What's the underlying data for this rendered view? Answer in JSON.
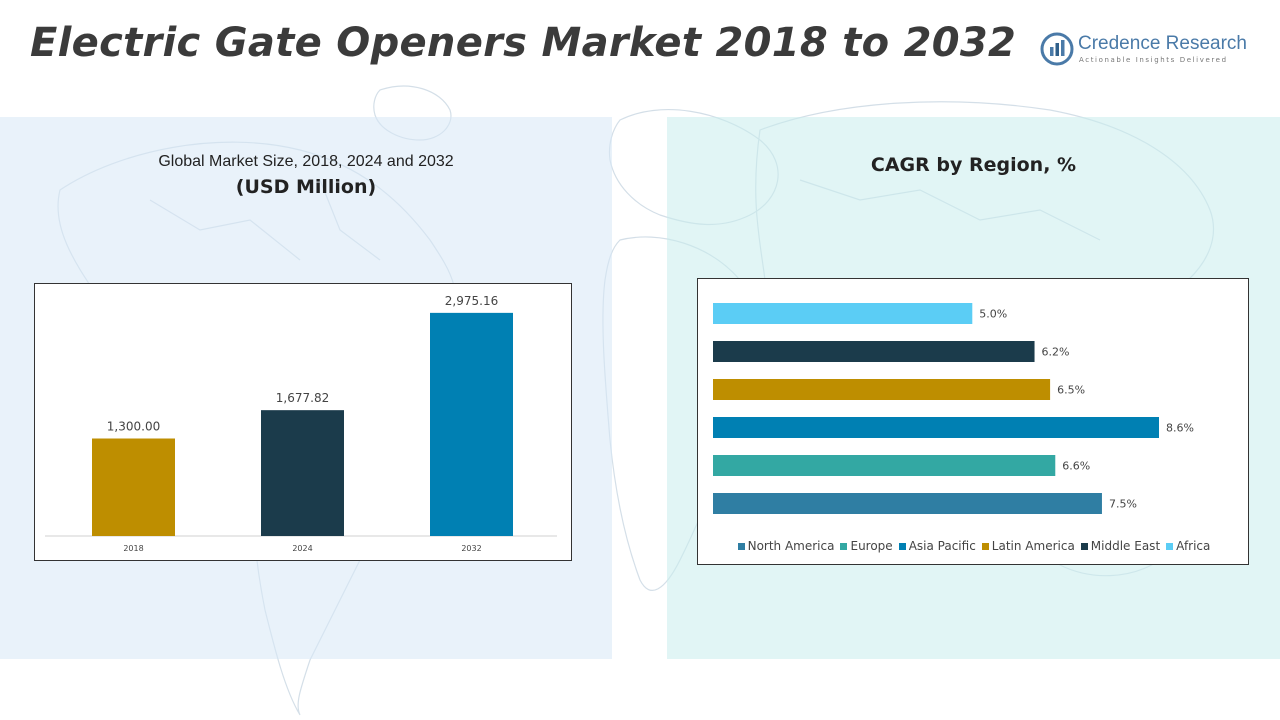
{
  "header": {
    "title": "Electric Gate Openers Market 2018 to 2032",
    "logo_name": "Credence Research",
    "logo_tagline": "Actionable Insights Delivered",
    "logo_color": "#4a7aa8"
  },
  "left_panel": {
    "subtitle": "Global Market Size, 2018, 2024 and 2032",
    "unit": "(USD Million)"
  },
  "right_panel": {
    "title": "CAGR by Region, %"
  },
  "chart_data": [
    {
      "type": "bar",
      "title": "Global Market Size, 2018, 2024 and 2032",
      "ylabel": "",
      "xlabel": "",
      "categories": [
        "2018",
        "2024",
        "2032"
      ],
      "values": [
        1300.0,
        1677.82,
        2975.16
      ],
      "value_labels": [
        "1,300.00",
        "1,677.82",
        "2,975.16"
      ],
      "colors": [
        "#be8e00",
        "#1b3b4b",
        "#0080b3"
      ],
      "ylim": [
        0,
        3200
      ],
      "grid": false
    },
    {
      "type": "bar",
      "orientation": "horizontal",
      "title": "CAGR by Region, %",
      "categories": [
        "North America",
        "Europe",
        "Asia Pacific",
        "Latin America",
        "Middle East",
        "Africa"
      ],
      "values": [
        7.5,
        6.6,
        8.6,
        6.5,
        6.2,
        5.0
      ],
      "value_labels": [
        "7.5%",
        "6.6%",
        "8.6%",
        "6.5%",
        "6.2%",
        "5.0%"
      ],
      "colors": [
        "#2f7ea3",
        "#33a8a3",
        "#0080b3",
        "#be8e00",
        "#1b3b4b",
        "#5bcdf5"
      ],
      "xlim": [
        0,
        8.6
      ],
      "legend": "bottom",
      "grid": false
    }
  ]
}
